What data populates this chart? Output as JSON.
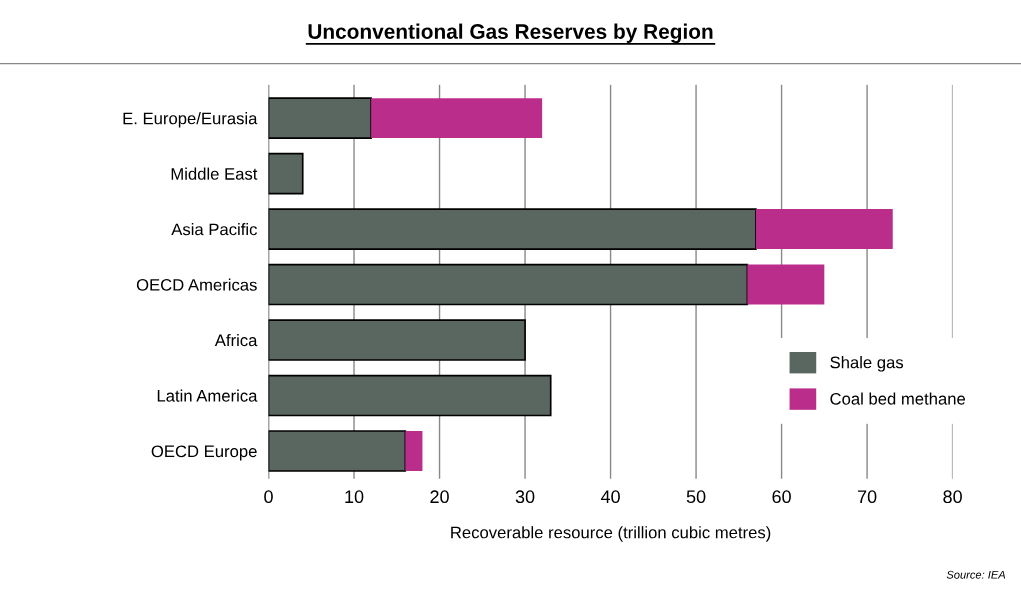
{
  "chart_data": {
    "type": "bar",
    "orientation": "horizontal",
    "stacked": true,
    "title": "Unconventional Gas Reserves by Region",
    "xlabel": "Recoverable resource (trillion cubic metres)",
    "categories": [
      "E. Europe/Eurasia",
      "Middle East",
      "Asia Pacific",
      "OECD Americas",
      "Africa",
      "Latin America",
      "OECD Europe"
    ],
    "series": [
      {
        "name": "Shale gas",
        "color": "#5a6660",
        "values": [
          12,
          4,
          57,
          56,
          30,
          33,
          16
        ]
      },
      {
        "name": "Coal bed methane",
        "color": "#bb2d8b",
        "values": [
          20,
          null,
          16,
          9,
          null,
          null,
          2
        ]
      }
    ],
    "xlim": [
      0,
      80
    ],
    "xticks": [
      0,
      10,
      20,
      30,
      40,
      50,
      60,
      70,
      80
    ],
    "grid": "x",
    "legend": "bottom right",
    "annotations": [
      "Source: IEA"
    ]
  }
}
